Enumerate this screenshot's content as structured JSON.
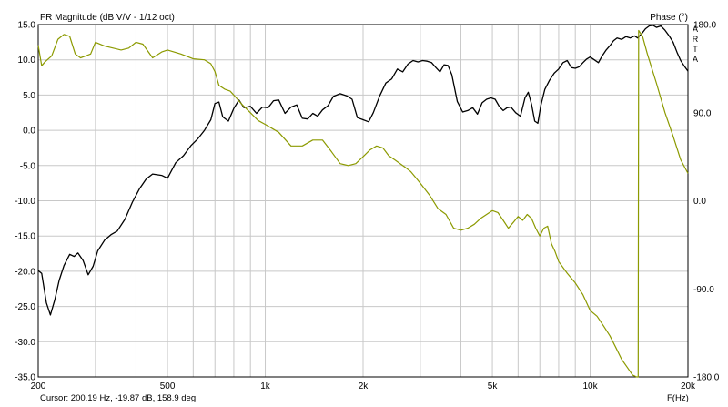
{
  "header": {
    "title": "FR Magnitude (dB V/V - 1/12 oct)",
    "right_axis_label": "Phase (°)",
    "brand_letters": [
      "A",
      "R",
      "T",
      "A"
    ]
  },
  "footer": {
    "cursor": "Cursor: 200.19 Hz, -19.87 dB, 158.9 deg",
    "xlabel": "F(Hz)"
  },
  "chart_data": {
    "type": "line",
    "title": "FR Magnitude (dB V/V - 1/12 oct)",
    "xlabel": "F(Hz)",
    "ylabel": "",
    "y2label": "Phase (°)",
    "xscale": "log",
    "xlim": [
      200,
      20000
    ],
    "ylim": [
      -35,
      15
    ],
    "y2lim": [
      -180,
      180
    ],
    "grid": true,
    "xticks": [
      200,
      500,
      1000,
      2000,
      5000,
      10000,
      20000
    ],
    "xtick_labels": [
      "200",
      "500",
      "1k",
      "2k",
      "5k",
      "10k",
      "20k"
    ],
    "yticks": [
      15,
      10,
      5,
      0,
      -5,
      -10,
      -15,
      -20,
      -25,
      -30,
      -35
    ],
    "ytick_labels": [
      "15.0",
      "10.0",
      "5.0",
      "0.0",
      "-5.0",
      "-10.0",
      "-15.0",
      "-20.0",
      "-25.0",
      "-30.0",
      "-35.0"
    ],
    "y2ticks": [
      180,
      90,
      0,
      -90,
      -180
    ],
    "y2tick_labels": [
      "180.0",
      "90.0",
      "0.0",
      "-90.0",
      "-180.0"
    ],
    "colors": {
      "magnitude": "#000000",
      "phase": "#8c9a00",
      "grid": "#c8c8c8"
    },
    "series": [
      {
        "axis": "left",
        "color": "#000000",
        "x": [
          200,
          205,
          212,
          218,
          225,
          232,
          240,
          250,
          258,
          265,
          275,
          285,
          295,
          305,
          320,
          335,
          350,
          370,
          390,
          410,
          430,
          450,
          480,
          500,
          530,
          560,
          590,
          620,
          650,
          680,
          700,
          720,
          740,
          770,
          800,
          830,
          860,
          900,
          940,
          980,
          1020,
          1060,
          1100,
          1150,
          1200,
          1250,
          1300,
          1350,
          1400,
          1450,
          1500,
          1560,
          1620,
          1700,
          1780,
          1850,
          1920,
          2000,
          2080,
          2150,
          2250,
          2350,
          2450,
          2550,
          2650,
          2750,
          2850,
          2950,
          3050,
          3150,
          3250,
          3350,
          3450,
          3550,
          3650,
          3750,
          3900,
          4050,
          4200,
          4350,
          4500,
          4650,
          4800,
          4950,
          5100,
          5250,
          5400,
          5550,
          5700,
          5900,
          6100,
          6300,
          6450,
          6600,
          6750,
          6900,
          7050,
          7250,
          7500,
          7750,
          8000,
          8250,
          8500,
          8750,
          9000,
          9250,
          9500,
          9750,
          10000,
          10300,
          10600,
          10900,
          11200,
          11500,
          11800,
          12100,
          12500,
          12900,
          13300,
          13700,
          14000,
          14400,
          14800,
          15200,
          15600,
          16000,
          16500,
          17000,
          17500,
          18000,
          18500,
          19000,
          19500,
          20000
        ],
        "values": [
          -19.9,
          -20.3,
          -24.5,
          -26.2,
          -24.0,
          -21.3,
          -19.2,
          -17.6,
          -17.9,
          -17.4,
          -18.5,
          -20.5,
          -19.3,
          -17.1,
          -15.6,
          -14.8,
          -14.3,
          -12.6,
          -10.2,
          -8.3,
          -6.9,
          -6.2,
          -6.4,
          -6.8,
          -4.6,
          -3.6,
          -2.2,
          -1.2,
          0.0,
          1.5,
          3.8,
          4.0,
          1.9,
          1.3,
          3.1,
          4.3,
          3.2,
          3.4,
          2.4,
          3.3,
          3.2,
          4.2,
          4.3,
          2.4,
          3.3,
          3.6,
          1.7,
          1.6,
          2.4,
          2.0,
          2.9,
          3.5,
          4.8,
          5.2,
          4.9,
          4.4,
          1.8,
          1.5,
          1.2,
          2.5,
          4.9,
          6.7,
          7.3,
          8.7,
          8.3,
          9.4,
          9.9,
          9.7,
          9.9,
          9.8,
          9.6,
          8.9,
          8.3,
          9.3,
          9.2,
          7.9,
          4.1,
          2.6,
          2.8,
          3.2,
          2.3,
          3.9,
          4.4,
          4.6,
          4.4,
          3.4,
          2.8,
          3.2,
          3.3,
          2.5,
          2.0,
          4.6,
          5.4,
          3.7,
          1.3,
          1.0,
          3.5,
          5.8,
          7.1,
          8.1,
          8.7,
          9.6,
          9.9,
          8.9,
          8.8,
          9.0,
          9.6,
          10.1,
          10.4,
          10.0,
          9.6,
          10.6,
          11.4,
          12.0,
          12.7,
          13.1,
          12.9,
          13.3,
          13.1,
          13.4,
          13.1,
          13.7,
          14.4,
          14.8,
          14.9,
          14.6,
          14.8,
          14.2,
          13.4,
          12.5,
          11.1,
          9.9,
          9.1,
          8.4
        ]
      },
      {
        "axis": "right",
        "color": "#8c9a00",
        "x": [
          200,
          205,
          210,
          220,
          230,
          240,
          250,
          260,
          270,
          280,
          290,
          300,
          320,
          340,
          360,
          380,
          400,
          420,
          450,
          480,
          500,
          550,
          600,
          650,
          680,
          700,
          720,
          750,
          780,
          800,
          850,
          900,
          950,
          1000,
          1100,
          1200,
          1300,
          1400,
          1500,
          1600,
          1700,
          1800,
          1900,
          2000,
          2100,
          2200,
          2300,
          2400,
          2500,
          2600,
          2700,
          2800,
          2900,
          3000,
          3200,
          3400,
          3600,
          3800,
          4000,
          4200,
          4400,
          4600,
          4800,
          5000,
          5200,
          5400,
          5600,
          5800,
          6000,
          6200,
          6400,
          6600,
          6800,
          7000,
          7200,
          7400,
          7600,
          7800,
          8000,
          8500,
          9000,
          9500,
          10000,
          10500,
          11000,
          11500,
          12000,
          12500,
          13000,
          13500,
          13900,
          14050,
          14100,
          14500,
          15000,
          16000,
          17000,
          18000,
          19000,
          20000
        ],
        "values": [
          158.9,
          138,
          142,
          148,
          165,
          170,
          168,
          150,
          146,
          148,
          150,
          162,
          158,
          156,
          154,
          156,
          162,
          160,
          146,
          152,
          154,
          150,
          145,
          144,
          140,
          132,
          118,
          114,
          112,
          108,
          98,
          90,
          82,
          78,
          70,
          56,
          56,
          62,
          62,
          50,
          38,
          36,
          38,
          45,
          52,
          56,
          54,
          46,
          42,
          38,
          34,
          30,
          24,
          18,
          6,
          -8,
          -14,
          -28,
          -30,
          -28,
          -24,
          -18,
          -14,
          -10,
          -12,
          -20,
          -28,
          -22,
          -16,
          -20,
          -14,
          -18,
          -28,
          -36,
          -28,
          -26,
          -44,
          -52,
          -62,
          -74,
          -84,
          -96,
          -112,
          -118,
          -128,
          -138,
          -150,
          -162,
          -170,
          -178,
          -180,
          -180,
          174,
          168,
          150,
          120,
          90,
          66,
          42,
          28
        ]
      }
    ]
  }
}
